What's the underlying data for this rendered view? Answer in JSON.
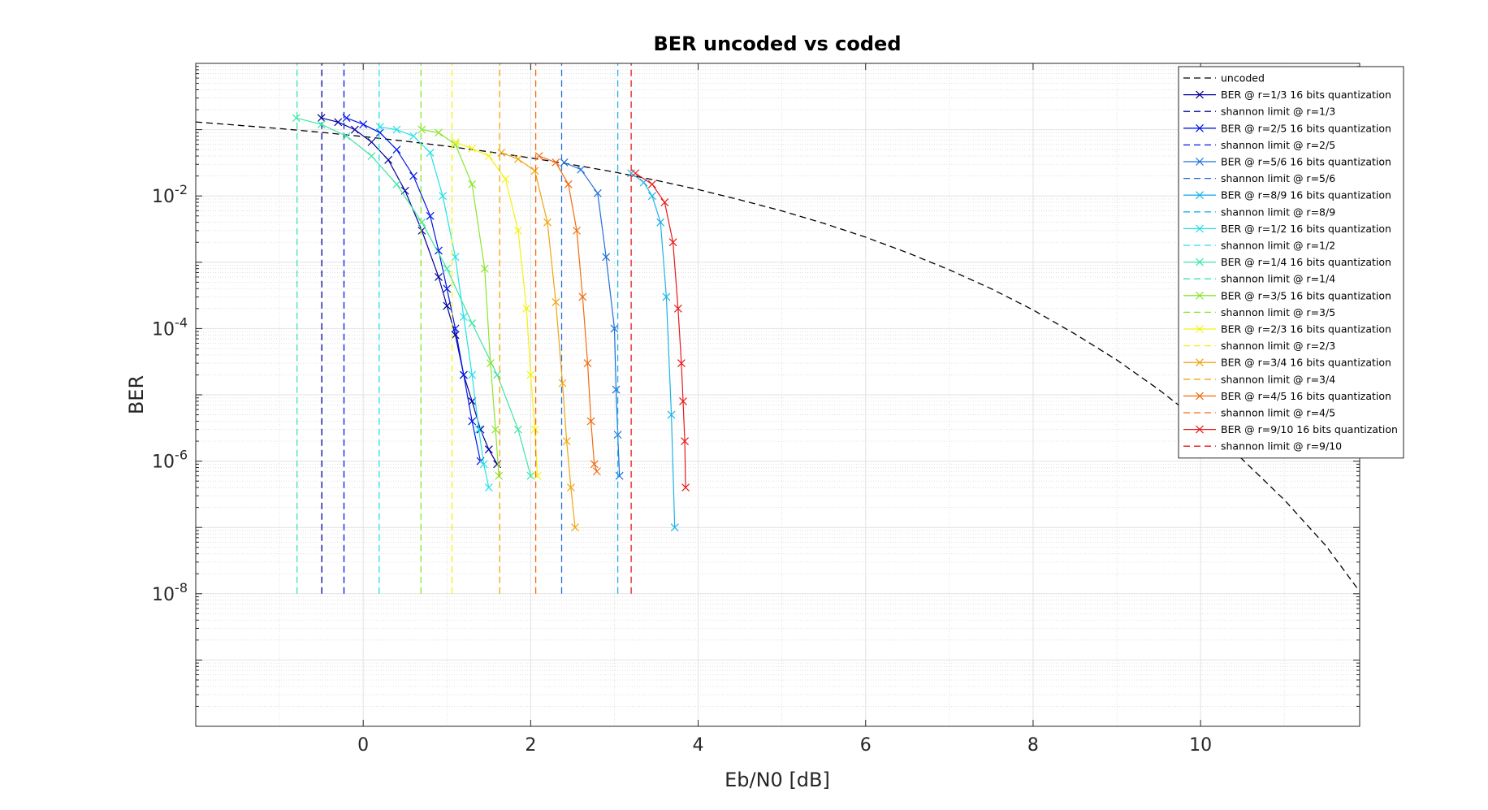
{
  "chart_data": {
    "type": "line",
    "title": "BER uncoded vs coded",
    "xlabel": "Eb/N0 [dB]",
    "ylabel": "BER",
    "y_scale": "log",
    "xlim": [
      -2,
      11.9
    ],
    "ylim": [
      1e-10,
      1
    ],
    "x_ticks": [
      0,
      2,
      4,
      6,
      8,
      10
    ],
    "y_ticks": [
      {
        "value": 0.01,
        "base": "10",
        "exp": "-2"
      },
      {
        "value": 0.0001,
        "base": "10",
        "exp": "-4"
      },
      {
        "value": 1e-06,
        "base": "10",
        "exp": "-6"
      },
      {
        "value": 1e-08,
        "base": "10",
        "exp": "-8"
      }
    ],
    "grid": true,
    "minor_grid": true,
    "legend_position": "top-right",
    "series": [
      {
        "name": "uncoded",
        "color": "#000000",
        "style": "dashed",
        "x": [
          -2,
          -1,
          -0.5,
          0,
          0.5,
          1,
          1.5,
          2,
          2.5,
          3,
          3.5,
          4,
          4.5,
          5,
          5.5,
          6,
          6.5,
          7,
          7.5,
          8,
          8.5,
          9,
          9.5,
          10,
          10.5,
          11,
          11.5,
          11.9
        ],
        "y": [
          0.1306,
          0.104,
          0.0912,
          0.0786,
          0.0671,
          0.0563,
          0.0464,
          0.0375,
          0.0296,
          0.0229,
          0.0172,
          0.0125,
          0.00873,
          0.00595,
          0.00386,
          0.00239,
          0.00139,
          0.00077,
          0.000398,
          0.000191,
          8.28e-05,
          3.36e-05,
          1.2e-05,
          3.87e-06,
          1.06e-06,
          2.61e-07,
          5.23e-08,
          1.08e-08
        ]
      },
      {
        "name": "BER @ r=1/3 16 bits quantization",
        "color": "#00009A",
        "style": "solid-x",
        "x": [
          -0.5,
          -0.3,
          -0.1,
          0.1,
          0.3,
          0.5,
          0.7,
          0.9,
          1.0,
          1.1,
          1.2,
          1.3,
          1.4,
          1.5,
          1.6
        ],
        "y": [
          0.15,
          0.13,
          0.1,
          0.065,
          0.035,
          0.012,
          0.003,
          0.0006,
          0.00022,
          8e-05,
          2e-05,
          8e-06,
          3e-06,
          1.5e-06,
          9e-07
        ]
      },
      {
        "name": "shannon limit @ r=1/3",
        "color": "#00009A",
        "style": "dashed-vertical",
        "x": [
          -0.495,
          -0.495
        ],
        "y": [
          1e-08,
          1
        ]
      },
      {
        "name": "BER @ r=2/5 16 bits quantization",
        "color": "#0018E6",
        "style": "solid-x",
        "x": [
          -0.2,
          0.0,
          0.2,
          0.4,
          0.6,
          0.8,
          0.9,
          1.0,
          1.1,
          1.2,
          1.3,
          1.4
        ],
        "y": [
          0.15,
          0.12,
          0.09,
          0.05,
          0.02,
          0.005,
          0.0015,
          0.0004,
          0.0001,
          2e-05,
          4e-06,
          1e-06
        ]
      },
      {
        "name": "shannon limit @ r=2/5",
        "color": "#0018E6",
        "style": "dashed-vertical",
        "x": [
          -0.23,
          -0.23
        ],
        "y": [
          1e-08,
          1
        ]
      },
      {
        "name": "BER @ r=5/6 16 bits quantization",
        "color": "#1F6FD9",
        "style": "solid-x",
        "x": [
          2.4,
          2.6,
          2.8,
          2.9,
          3.0,
          3.02,
          3.04,
          3.06
        ],
        "y": [
          0.032,
          0.025,
          0.011,
          0.0012,
          0.0001,
          1.2e-05,
          2.5e-06,
          6e-07
        ]
      },
      {
        "name": "shannon limit @ r=5/6",
        "color": "#1F6FD9",
        "style": "dashed-vertical",
        "x": [
          2.37,
          2.37
        ],
        "y": [
          1e-08,
          1
        ]
      },
      {
        "name": "BER @ r=8/9 16 bits quantization",
        "color": "#1CB3E6",
        "style": "solid-x",
        "x": [
          3.2,
          3.35,
          3.45,
          3.55,
          3.62,
          3.68,
          3.72
        ],
        "y": [
          0.022,
          0.016,
          0.01,
          0.004,
          0.0003,
          5e-06,
          1e-07
        ]
      },
      {
        "name": "shannon limit @ r=8/9",
        "color": "#1CB3E6",
        "style": "dashed-vertical",
        "x": [
          3.04,
          3.04
        ],
        "y": [
          1e-08,
          1
        ]
      },
      {
        "name": "BER @ r=1/2 16 bits quantization",
        "color": "#22E1E6",
        "style": "solid-x",
        "x": [
          0.2,
          0.4,
          0.6,
          0.8,
          0.95,
          1.1,
          1.2,
          1.3,
          1.38,
          1.44,
          1.5
        ],
        "y": [
          0.11,
          0.1,
          0.08,
          0.045,
          0.01,
          0.0012,
          0.00015,
          2e-05,
          3e-06,
          9e-07,
          4e-07
        ]
      },
      {
        "name": "shannon limit @ r=1/2",
        "color": "#22E1E6",
        "style": "dashed-vertical",
        "x": [
          0.19,
          0.19
        ],
        "y": [
          1e-08,
          1
        ]
      },
      {
        "name": "BER @ r=1/4 16 bits quantization",
        "color": "#3EE6A4",
        "style": "solid-x",
        "x": [
          -0.8,
          -0.5,
          -0.2,
          0.1,
          0.4,
          0.7,
          1.0,
          1.3,
          1.6,
          1.85,
          2.0
        ],
        "y": [
          0.15,
          0.12,
          0.08,
          0.04,
          0.015,
          0.004,
          0.0008,
          0.00012,
          2e-05,
          3e-06,
          6e-07
        ]
      },
      {
        "name": "shannon limit @ r=1/4",
        "color": "#3EE6A4",
        "style": "dashed-vertical",
        "x": [
          -0.79,
          -0.79
        ],
        "y": [
          1e-08,
          1
        ]
      },
      {
        "name": "BER @ r=3/5 16 bits quantization",
        "color": "#8AE62E",
        "style": "solid-x",
        "x": [
          0.7,
          0.9,
          1.1,
          1.3,
          1.45,
          1.52,
          1.58,
          1.62
        ],
        "y": [
          0.1,
          0.09,
          0.06,
          0.015,
          0.0008,
          3e-05,
          3e-06,
          6e-07
        ]
      },
      {
        "name": "shannon limit @ r=3/5",
        "color": "#8AE62E",
        "style": "dashed-vertical",
        "x": [
          0.69,
          0.69
        ],
        "y": [
          1e-08,
          1
        ]
      },
      {
        "name": "BER @ r=2/3 16 bits quantization",
        "color": "#F2F211",
        "style": "solid-x",
        "x": [
          1.1,
          1.3,
          1.5,
          1.7,
          1.85,
          1.95,
          2.0,
          2.05,
          2.08
        ],
        "y": [
          0.065,
          0.052,
          0.04,
          0.018,
          0.003,
          0.0002,
          2e-05,
          3e-06,
          6e-07
        ]
      },
      {
        "name": "shannon limit @ r=2/3",
        "color": "#F2F211",
        "style": "dashed-vertical",
        "x": [
          1.06,
          1.06
        ],
        "y": [
          1e-08,
          1
        ]
      },
      {
        "name": "BER @ r=3/4 16 bits quantization",
        "color": "#F2A40F",
        "style": "solid-x",
        "x": [
          1.65,
          1.85,
          2.05,
          2.2,
          2.3,
          2.38,
          2.43,
          2.48,
          2.53
        ],
        "y": [
          0.045,
          0.036,
          0.024,
          0.004,
          0.00025,
          1.5e-05,
          2e-06,
          4e-07,
          1e-07
        ]
      },
      {
        "name": "shannon limit @ r=3/4",
        "color": "#F2A40F",
        "style": "dashed-vertical",
        "x": [
          1.63,
          1.63
        ],
        "y": [
          1e-08,
          1
        ]
      },
      {
        "name": "BER @ r=4/5 16 bits quantization",
        "color": "#F26B0F",
        "style": "solid-x",
        "x": [
          2.1,
          2.3,
          2.45,
          2.55,
          2.62,
          2.68,
          2.72,
          2.76,
          2.79
        ],
        "y": [
          0.04,
          0.032,
          0.015,
          0.003,
          0.0003,
          3e-05,
          4e-06,
          9e-07,
          7e-07
        ]
      },
      {
        "name": "shannon limit @ r=4/5",
        "color": "#F26B0F",
        "style": "dashed-vertical",
        "x": [
          2.06,
          2.06
        ],
        "y": [
          1e-08,
          1
        ]
      },
      {
        "name": "BER @ r=9/10 16 bits quantization",
        "color": "#E61A1A",
        "style": "solid-x",
        "x": [
          3.25,
          3.45,
          3.6,
          3.7,
          3.76,
          3.8,
          3.82,
          3.84,
          3.85
        ],
        "y": [
          0.022,
          0.015,
          0.008,
          0.002,
          0.0002,
          3e-05,
          8e-06,
          2e-06,
          4e-07
        ]
      },
      {
        "name": "shannon limit @ r=9/10",
        "color": "#E61A1A",
        "style": "dashed-vertical",
        "x": [
          3.2,
          3.2
        ],
        "y": [
          1e-08,
          1
        ]
      }
    ]
  }
}
